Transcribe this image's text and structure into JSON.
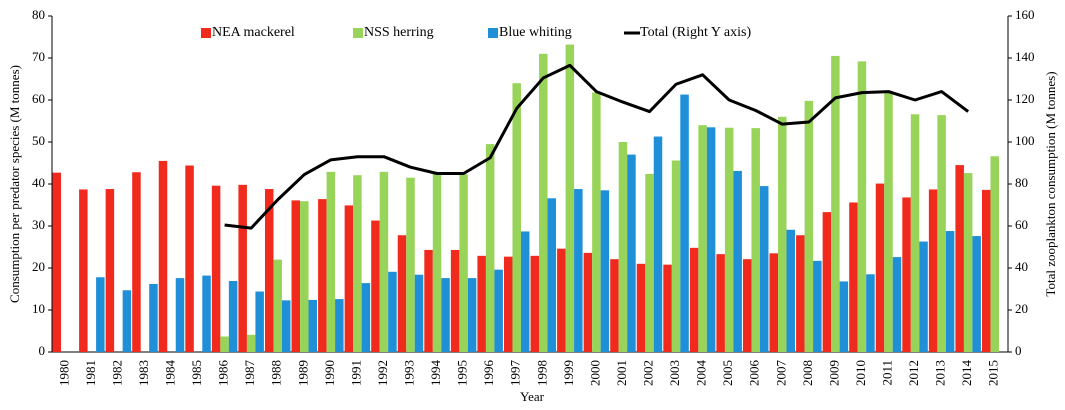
{
  "chart_data": {
    "type": "bar",
    "xlabel": "Year",
    "ylabel": "Consumption per predator species (M tonnes)",
    "y2label": "Total zooplankton consumption (M tonnes)",
    "categories": [
      "1980",
      "1981",
      "1982",
      "1983",
      "1984",
      "1985",
      "1986",
      "1987",
      "1988",
      "1989",
      "1990",
      "1991",
      "1992",
      "1993",
      "1994",
      "1995",
      "1996",
      "1997",
      "1998",
      "1999",
      "2000",
      "2001",
      "2002",
      "2003",
      "2004",
      "2005",
      "2006",
      "2007",
      "2008",
      "2009",
      "2010",
      "2011",
      "2012",
      "2013",
      "2014",
      "2015"
    ],
    "series": [
      {
        "name": "NEA mackerel",
        "color": "#f02a1c",
        "type": "bar",
        "values": [
          42.7,
          38.7,
          38.8,
          42.8,
          45.5,
          44.4,
          39.6,
          39.8,
          38.8,
          36.1,
          36.4,
          34.9,
          31.3,
          27.8,
          24.3,
          24.3,
          22.9,
          22.7,
          22.9,
          24.6,
          23.6,
          22.1,
          21.0,
          20.8,
          24.8,
          23.3,
          22.1,
          23.5,
          27.8,
          33.3,
          35.6,
          40.1,
          36.8,
          38.7,
          44.5,
          38.6
        ]
      },
      {
        "name": "NSS herring",
        "color": "#99d45a",
        "type": "bar",
        "values": [
          null,
          null,
          null,
          null,
          null,
          null,
          3.7,
          4.1,
          22,
          35.9,
          42.9,
          42.1,
          42.9,
          41.5,
          42.5,
          42.3,
          49.5,
          64,
          71,
          73.2,
          61.8,
          50,
          42.4,
          45.6,
          54,
          53.4,
          53.3,
          56,
          59.8,
          70.5,
          69.2,
          61.7,
          56.6,
          56.4,
          42.6,
          46.6
        ]
      },
      {
        "name": "Blue whiting",
        "color": "#1f8fd8",
        "type": "bar",
        "values": [
          null,
          17.8,
          14.7,
          16.2,
          17.6,
          18.2,
          16.9,
          14.4,
          12.3,
          12.4,
          12.6,
          16.4,
          19.1,
          18.4,
          17.6,
          17.6,
          19.6,
          28.7,
          36.6,
          38.8,
          38.5,
          47,
          51.3,
          61.3,
          53.5,
          43.1,
          39.5,
          29.1,
          21.7,
          16.8,
          18.5,
          22.6,
          26.3,
          28.8,
          27.6,
          null
        ]
      },
      {
        "name": "Total (Right Y axis)",
        "color": "#000000",
        "type": "line",
        "axis": "y2",
        "values": [
          null,
          null,
          null,
          null,
          null,
          null,
          60.5,
          59,
          72.5,
          84.5,
          91.5,
          93,
          93,
          88,
          85,
          85,
          92.5,
          116,
          130.5,
          136.5,
          124,
          119,
          114.5,
          127.5,
          132,
          120,
          115,
          108.5,
          109.5,
          121,
          123.5,
          124,
          120,
          124,
          114.5,
          null
        ]
      }
    ],
    "ylim": [
      0,
      80
    ],
    "yticks": [
      0,
      10,
      20,
      30,
      40,
      50,
      60,
      70,
      80
    ],
    "y2lim": [
      0,
      160
    ],
    "y2ticks": [
      0,
      20,
      40,
      60,
      80,
      100,
      120,
      140,
      160
    ],
    "legend": "top"
  }
}
